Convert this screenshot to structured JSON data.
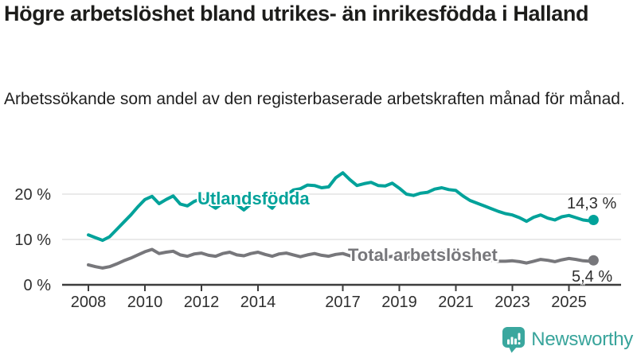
{
  "header": {
    "title": "Högre arbetslöshet bland utrikes- än inrikesfödda i Halland",
    "subtitle": "Arbetssökande som andel av den registerbaserade arbetskraften månad för månad."
  },
  "branding": {
    "logo_text": "Newsworthy",
    "brand_color": "#3aa79e"
  },
  "chart_data": {
    "type": "line",
    "unit": "%",
    "x_start": 2008.0,
    "x_step": 0.25,
    "x_end": 2025.87,
    "ylim": [
      0,
      27
    ],
    "grid": "horizontal",
    "y_ticks": [
      {
        "label": "0 %",
        "value": 0
      },
      {
        "label": "10 %",
        "value": 10
      },
      {
        "label": "20 %",
        "value": 20
      }
    ],
    "x_ticks": [
      {
        "label": "2008",
        "t": 2008
      },
      {
        "label": "2010",
        "t": 2010
      },
      {
        "label": "2012",
        "t": 2012
      },
      {
        "label": "2014",
        "t": 2014
      },
      {
        "label": "2017",
        "t": 2017
      },
      {
        "label": "2019",
        "t": 2019
      },
      {
        "label": "2021",
        "t": 2021
      },
      {
        "label": "2023",
        "t": 2023
      },
      {
        "label": "2025",
        "t": 2025
      }
    ],
    "series": [
      {
        "name": "Utlandsfödda",
        "color": "#00a29a",
        "end_label": "14,3 %",
        "end_value": 14.3,
        "values": [
          11.0,
          10.4,
          9.8,
          10.6,
          12.2,
          13.8,
          15.4,
          17.2,
          18.8,
          19.5,
          17.9,
          18.8,
          19.6,
          17.8,
          17.4,
          18.4,
          19.0,
          17.9,
          16.9,
          18.0,
          18.9,
          17.7,
          16.5,
          17.8,
          19.1,
          18.1,
          16.9,
          18.7,
          19.8,
          20.9,
          21.2,
          22.0,
          21.9,
          21.4,
          21.6,
          23.6,
          24.7,
          23.2,
          21.9,
          22.3,
          22.6,
          21.9,
          21.8,
          22.4,
          21.3,
          20.0,
          19.7,
          20.2,
          20.4,
          21.1,
          21.4,
          21.0,
          20.8,
          19.6,
          18.6,
          18.0,
          17.4,
          16.8,
          16.2,
          15.7,
          15.4,
          14.8,
          14.0,
          14.9,
          15.4,
          14.7,
          14.3,
          15.0,
          15.3,
          14.8,
          14.3,
          14.1,
          14.3
        ]
      },
      {
        "name": "Total arbetslöshet",
        "color": "#77777b",
        "end_label": "5,4 %",
        "end_value": 5.4,
        "values": [
          4.4,
          4.0,
          3.7,
          4.0,
          4.6,
          5.3,
          5.9,
          6.6,
          7.3,
          7.8,
          6.9,
          7.2,
          7.4,
          6.6,
          6.3,
          6.8,
          7.0,
          6.5,
          6.3,
          6.9,
          7.2,
          6.6,
          6.4,
          6.9,
          7.2,
          6.7,
          6.3,
          6.8,
          7.0,
          6.6,
          6.2,
          6.6,
          6.9,
          6.5,
          6.3,
          6.7,
          6.9,
          6.4,
          6.1,
          6.5,
          6.8,
          6.3,
          6.0,
          6.3,
          6.5,
          6.1,
          6.0,
          6.3,
          6.6,
          7.2,
          7.4,
          7.2,
          7.0,
          6.6,
          6.2,
          5.9,
          5.7,
          5.4,
          5.2,
          5.2,
          5.3,
          5.1,
          4.8,
          5.2,
          5.6,
          5.4,
          5.1,
          5.5,
          5.8,
          5.6,
          5.3,
          5.2,
          5.4
        ]
      }
    ]
  }
}
